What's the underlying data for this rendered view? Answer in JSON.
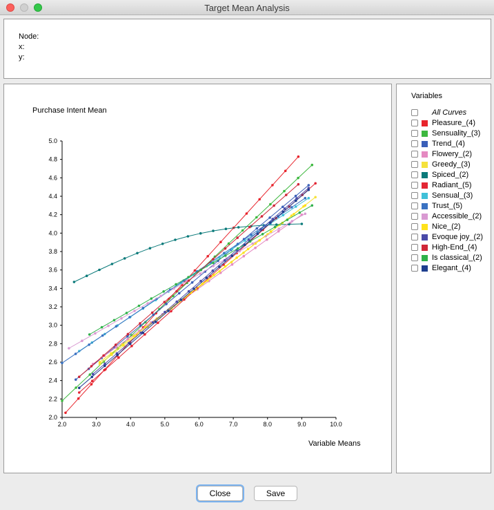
{
  "window": {
    "title": "Target Mean Analysis"
  },
  "info": {
    "node_label": "Node:",
    "x_label": "x:",
    "y_label": "y:"
  },
  "chart_data": {
    "type": "line",
    "ylabel": "Purchase Intent Mean",
    "xlabel": "Variable Means",
    "xlim": [
      2.0,
      10.0
    ],
    "ylim": [
      2.0,
      5.0
    ],
    "xticks": [
      "2.0",
      "3.0",
      "4.0",
      "5.0",
      "6.0",
      "7.0",
      "8.0",
      "9.0",
      "10.0"
    ],
    "yticks": [
      "2.0",
      "2.2",
      "2.4",
      "2.6",
      "2.8",
      "3.0",
      "3.2",
      "3.4",
      "3.6",
      "3.8",
      "4.0",
      "4.2",
      "4.4",
      "4.6",
      "4.8",
      "5.0"
    ],
    "grid": false,
    "series": [
      {
        "name": "Pleasure_(4)",
        "color": "#e8242c",
        "x0": 2.1,
        "x1": 8.9,
        "y0": 2.05,
        "y1": 4.83
      },
      {
        "name": "Sensuality_(3)",
        "color": "#3db83f",
        "x0": 2.0,
        "x1": 9.3,
        "y0": 2.18,
        "y1": 4.74
      },
      {
        "name": "Trend_(4)",
        "color": "#3a5fb8",
        "x0": 2.4,
        "x1": 9.2,
        "y0": 2.41,
        "y1": 4.52
      },
      {
        "name": "Flowery_(2)",
        "color": "#e58ac1",
        "x0": 2.9,
        "x1": 9.0,
        "y0": 2.58,
        "y1": 4.2
      },
      {
        "name": "Greedy_(3)",
        "color": "#f5e23c",
        "x0": 3.1,
        "x1": 9.4,
        "y0": 2.58,
        "y1": 4.39
      },
      {
        "name": "Spiced_(2)",
        "color": "#0a7a7a",
        "x0": 2.35,
        "x1": 9.0,
        "y0": 3.47,
        "y1": 4.1
      },
      {
        "name": "Radiant_(5)",
        "color": "#e32634",
        "x0": 2.5,
        "x1": 9.4,
        "y0": 2.27,
        "y1": 4.54
      },
      {
        "name": "Sensual_(3)",
        "color": "#40c0d8",
        "x0": 2.5,
        "x1": 9.2,
        "y0": 2.72,
        "y1": 4.38
      },
      {
        "name": "Trust_(5)",
        "color": "#3a72c2",
        "x0": 2.0,
        "x1": 9.1,
        "y0": 2.59,
        "y1": 4.38
      },
      {
        "name": "Accessible_(2)",
        "color": "#d99ad2",
        "x0": 2.2,
        "x1": 9.1,
        "y0": 2.75,
        "y1": 4.21
      },
      {
        "name": "Nice_(2)",
        "color": "#ffe21a",
        "x0": 3.1,
        "x1": 9.1,
        "y0": 2.6,
        "y1": 4.3
      },
      {
        "name": "Evoque joy_(2)",
        "color": "#4a4aa8",
        "x0": 2.9,
        "x1": 9.2,
        "y0": 2.47,
        "y1": 4.49
      },
      {
        "name": "High-End_(4)",
        "color": "#d02638",
        "x0": 2.5,
        "x1": 8.9,
        "y0": 2.44,
        "y1": 4.53
      },
      {
        "name": "Is classical_(2)",
        "color": "#30b14a",
        "x0": 2.8,
        "x1": 9.3,
        "y0": 2.9,
        "y1": 4.3
      },
      {
        "name": "Elegant_(4)",
        "color": "#1e3e8e",
        "x0": 2.5,
        "x1": 9.2,
        "y0": 2.32,
        "y1": 4.47
      }
    ]
  },
  "variables": {
    "title": "Variables",
    "all_curves": "All Curves",
    "items": [
      {
        "label": "Pleasure_(4)",
        "color": "#e8242c"
      },
      {
        "label": "Sensuality_(3)",
        "color": "#3db83f"
      },
      {
        "label": "Trend_(4)",
        "color": "#3a5fb8"
      },
      {
        "label": "Flowery_(2)",
        "color": "#e58ac1"
      },
      {
        "label": "Greedy_(3)",
        "color": "#f5e23c"
      },
      {
        "label": "Spiced_(2)",
        "color": "#0a7a7a"
      },
      {
        "label": "Radiant_(5)",
        "color": "#e32634"
      },
      {
        "label": "Sensual_(3)",
        "color": "#40c0d8"
      },
      {
        "label": "Trust_(5)",
        "color": "#3a72c2"
      },
      {
        "label": "Accessible_(2)",
        "color": "#d99ad2"
      },
      {
        "label": "Nice_(2)",
        "color": "#ffe21a"
      },
      {
        "label": "Evoque joy_(2)",
        "color": "#4a4aa8"
      },
      {
        "label": "High-End_(4)",
        "color": "#d02638"
      },
      {
        "label": "Is classical_(2)",
        "color": "#30b14a"
      },
      {
        "label": "Elegant_(4)",
        "color": "#1e3e8e"
      }
    ]
  },
  "buttons": {
    "close": "Close",
    "save": "Save"
  }
}
